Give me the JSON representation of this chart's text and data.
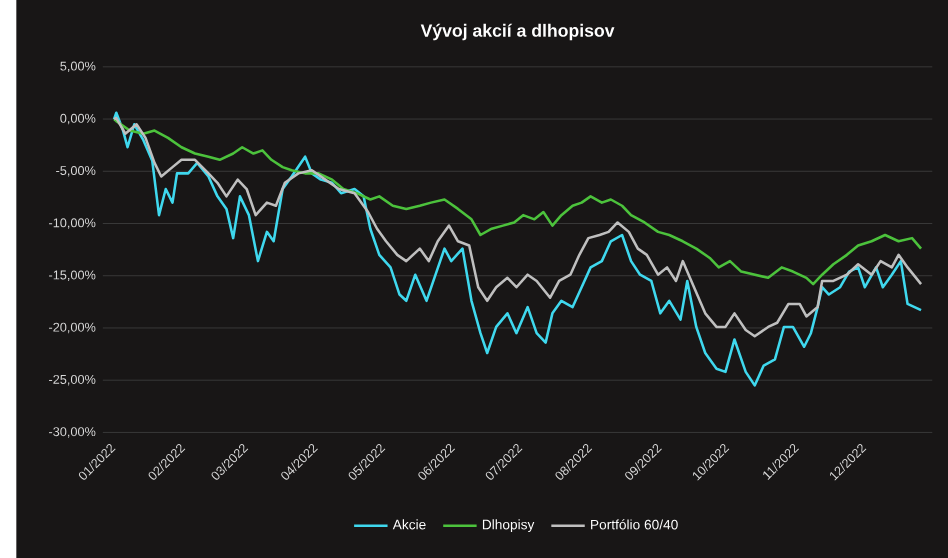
{
  "chart_data": {
    "type": "line",
    "title": "Vývoj akcií a dlhopisov",
    "xlim": [
      "2021-12-29",
      "2023-01-02"
    ],
    "xticks": [
      {
        "value": "2022-01-01",
        "label": "01/2022"
      },
      {
        "value": "2022-02-01",
        "label": "02/2022"
      },
      {
        "value": "2022-03-01",
        "label": "03/2022"
      },
      {
        "value": "2022-04-01",
        "label": "04/2022"
      },
      {
        "value": "2022-05-01",
        "label": "05/2022"
      },
      {
        "value": "2022-06-01",
        "label": "06/2022"
      },
      {
        "value": "2022-07-01",
        "label": "07/2022"
      },
      {
        "value": "2022-08-01",
        "label": "08/2022"
      },
      {
        "value": "2022-09-01",
        "label": "09/2022"
      },
      {
        "value": "2022-10-01",
        "label": "10/2022"
      },
      {
        "value": "2022-11-01",
        "label": "11/2022"
      },
      {
        "value": "2022-12-01",
        "label": "12/2022"
      }
    ],
    "ylim": [
      -30,
      5
    ],
    "yticks": [
      {
        "value": 5,
        "label": "5,00%"
      },
      {
        "value": 0,
        "label": "0,00%"
      },
      {
        "value": -5,
        "label": "-5,00%"
      },
      {
        "value": -10,
        "label": "-10,00%"
      },
      {
        "value": -15,
        "label": "-15,00%"
      },
      {
        "value": -20,
        "label": "-20,00%"
      },
      {
        "value": -25,
        "label": "-25,00%"
      },
      {
        "value": -30,
        "label": "-30,00%"
      }
    ],
    "grid": "y",
    "legend": "bottom",
    "series": [
      {
        "name": "Akcie",
        "color": "#3fd8ee",
        "x": [
          "2022-01-03",
          "2022-01-04",
          "2022-01-07",
          "2022-01-09",
          "2022-01-12",
          "2022-01-16",
          "2022-01-20",
          "2022-01-23",
          "2022-01-26",
          "2022-01-29",
          "2022-01-31",
          "2022-02-05",
          "2022-02-09",
          "2022-02-14",
          "2022-02-18",
          "2022-02-22",
          "2022-02-25",
          "2022-02-28",
          "2022-03-04",
          "2022-03-08",
          "2022-03-12",
          "2022-03-15",
          "2022-03-19",
          "2022-03-23",
          "2022-03-29",
          "2022-04-01",
          "2022-04-05",
          "2022-04-10",
          "2022-04-14",
          "2022-04-20",
          "2022-04-24",
          "2022-04-27",
          "2022-05-01",
          "2022-05-06",
          "2022-05-10",
          "2022-05-13",
          "2022-05-17",
          "2022-05-22",
          "2022-05-26",
          "2022-05-30",
          "2022-06-02",
          "2022-06-07",
          "2022-06-11",
          "2022-06-15",
          "2022-06-18",
          "2022-06-22",
          "2022-06-27",
          "2022-07-01",
          "2022-07-06",
          "2022-07-10",
          "2022-07-14",
          "2022-07-17",
          "2022-07-21",
          "2022-07-26",
          "2022-07-30",
          "2022-08-03",
          "2022-08-08",
          "2022-08-12",
          "2022-08-17",
          "2022-08-21",
          "2022-08-25",
          "2022-08-30",
          "2022-09-03",
          "2022-09-07",
          "2022-09-12",
          "2022-09-15",
          "2022-09-19",
          "2022-09-23",
          "2022-09-28",
          "2022-10-02",
          "2022-10-06",
          "2022-10-11",
          "2022-10-15",
          "2022-10-19",
          "2022-10-24",
          "2022-10-28",
          "2022-11-01",
          "2022-11-06",
          "2022-11-09",
          "2022-11-12",
          "2022-11-14",
          "2022-11-17",
          "2022-11-22",
          "2022-11-26",
          "2022-11-30",
          "2022-12-03",
          "2022-12-08",
          "2022-12-11",
          "2022-12-15",
          "2022-12-19",
          "2022-12-22",
          "2022-12-28"
        ],
        "values": [
          0,
          0.6,
          -1.1,
          -2.7,
          -0.5,
          -2,
          -4,
          -9.2,
          -6.7,
          -8,
          -5.2,
          -5.2,
          -4.2,
          -5.5,
          -7.4,
          -8.6,
          -11.4,
          -7.4,
          -9.2,
          -13.6,
          -10.8,
          -11.7,
          -6.7,
          -5.5,
          -3.6,
          -5.2,
          -5.8,
          -6.1,
          -7.1,
          -6.7,
          -7.4,
          -10.5,
          -13,
          -14.2,
          -16.8,
          -17.4,
          -14.9,
          -17.4,
          -14.9,
          -12.4,
          -13.6,
          -12.4,
          -17.4,
          -20.5,
          -22.4,
          -19.9,
          -18.6,
          -20.5,
          -18,
          -20.5,
          -21.4,
          -18.6,
          -17.4,
          -18,
          -16.1,
          -14.2,
          -13.6,
          -11.7,
          -11.1,
          -13.6,
          -14.9,
          -15.5,
          -18.6,
          -17.4,
          -19.2,
          -15.5,
          -19.9,
          -22.4,
          -23.9,
          -24.2,
          -21.1,
          -24.2,
          -25.5,
          -23.6,
          -23,
          -19.9,
          -19.9,
          -21.8,
          -20.5,
          -18,
          -16.1,
          -16.8,
          -16.1,
          -14.6,
          -14.2,
          -16.1,
          -14.2,
          -16.1,
          -14.9,
          -13.6,
          -17.7,
          -18.3
        ]
      },
      {
        "name": "Dlhopisy",
        "color": "#4cc23c",
        "x": [
          "2022-01-03",
          "2022-01-04",
          "2022-01-10",
          "2022-01-16",
          "2022-01-21",
          "2022-01-27",
          "2022-02-02",
          "2022-02-08",
          "2022-02-14",
          "2022-02-19",
          "2022-02-25",
          "2022-03-01",
          "2022-03-06",
          "2022-03-10",
          "2022-03-14",
          "2022-03-19",
          "2022-03-23",
          "2022-03-29",
          "2022-04-04",
          "2022-04-10",
          "2022-04-15",
          "2022-04-21",
          "2022-04-27",
          "2022-05-01",
          "2022-05-07",
          "2022-05-13",
          "2022-05-19",
          "2022-05-24",
          "2022-05-30",
          "2022-06-05",
          "2022-06-11",
          "2022-06-15",
          "2022-06-20",
          "2022-06-25",
          "2022-06-30",
          "2022-07-04",
          "2022-07-09",
          "2022-07-13",
          "2022-07-17",
          "2022-07-21",
          "2022-07-26",
          "2022-07-30",
          "2022-08-03",
          "2022-08-08",
          "2022-08-12",
          "2022-08-17",
          "2022-08-21",
          "2022-08-27",
          "2022-09-02",
          "2022-09-07",
          "2022-09-13",
          "2022-09-19",
          "2022-09-25",
          "2022-09-29",
          "2022-10-04",
          "2022-10-09",
          "2022-10-15",
          "2022-10-21",
          "2022-10-27",
          "2022-11-01",
          "2022-11-07",
          "2022-11-10",
          "2022-11-14",
          "2022-11-19",
          "2022-11-25",
          "2022-11-30",
          "2022-12-06",
          "2022-12-12",
          "2022-12-18",
          "2022-12-24",
          "2022-12-28"
        ],
        "values": [
          0,
          -0.2,
          -1.1,
          -1.4,
          -1.1,
          -1.8,
          -2.7,
          -3.3,
          -3.6,
          -3.9,
          -3.3,
          -2.7,
          -3.3,
          -3,
          -3.9,
          -4.6,
          -4.9,
          -5.2,
          -5.2,
          -5.8,
          -6.7,
          -7.1,
          -7.7,
          -7.4,
          -8.3,
          -8.6,
          -8.3,
          -8,
          -7.7,
          -8.6,
          -9.6,
          -11.1,
          -10.5,
          -10.2,
          -9.9,
          -9.2,
          -9.6,
          -8.9,
          -10.2,
          -9.2,
          -8.3,
          -8,
          -7.4,
          -8,
          -7.7,
          -8.3,
          -9.2,
          -9.9,
          -10.8,
          -11.1,
          -11.7,
          -12.4,
          -13.3,
          -14.2,
          -13.6,
          -14.6,
          -14.9,
          -15.2,
          -14.2,
          -14.6,
          -15.2,
          -15.8,
          -14.9,
          -13.9,
          -13,
          -12.1,
          -11.7,
          -11.1,
          -11.7,
          -11.4,
          -12.4
        ]
      },
      {
        "name": "Portfólio 60/40",
        "color": "#bfbfbf",
        "x": [
          "2022-01-03",
          "2022-01-04",
          "2022-01-08",
          "2022-01-13",
          "2022-01-17",
          "2022-01-21",
          "2022-01-24",
          "2022-01-29",
          "2022-02-02",
          "2022-02-08",
          "2022-02-14",
          "2022-02-18",
          "2022-02-22",
          "2022-02-27",
          "2022-03-03",
          "2022-03-07",
          "2022-03-12",
          "2022-03-16",
          "2022-03-20",
          "2022-03-26",
          "2022-04-01",
          "2022-04-07",
          "2022-04-13",
          "2022-04-20",
          "2022-04-26",
          "2022-04-30",
          "2022-05-04",
          "2022-05-09",
          "2022-05-13",
          "2022-05-19",
          "2022-05-23",
          "2022-05-27",
          "2022-06-01",
          "2022-06-05",
          "2022-06-10",
          "2022-06-14",
          "2022-06-18",
          "2022-06-22",
          "2022-06-27",
          "2022-07-01",
          "2022-07-06",
          "2022-07-10",
          "2022-07-16",
          "2022-07-20",
          "2022-07-25",
          "2022-07-29",
          "2022-08-02",
          "2022-08-07",
          "2022-08-11",
          "2022-08-15",
          "2022-08-20",
          "2022-08-24",
          "2022-08-28",
          "2022-09-02",
          "2022-09-06",
          "2022-09-10",
          "2022-09-13",
          "2022-09-18",
          "2022-09-23",
          "2022-09-28",
          "2022-10-02",
          "2022-10-06",
          "2022-10-11",
          "2022-10-15",
          "2022-10-21",
          "2022-10-25",
          "2022-10-30",
          "2022-11-04",
          "2022-11-07",
          "2022-11-12",
          "2022-11-14",
          "2022-11-19",
          "2022-11-25",
          "2022-11-30",
          "2022-12-06",
          "2022-12-10",
          "2022-12-15",
          "2022-12-18",
          "2022-12-22",
          "2022-12-28"
        ],
        "values": [
          0,
          0.1,
          -1.4,
          -0.5,
          -1.8,
          -4.2,
          -5.5,
          -4.6,
          -3.9,
          -3.9,
          -5.2,
          -6.1,
          -7.4,
          -5.8,
          -6.7,
          -9.2,
          -8,
          -8.3,
          -6.1,
          -5.2,
          -4.9,
          -5.8,
          -6.7,
          -7.1,
          -8.9,
          -10.5,
          -11.7,
          -13,
          -13.6,
          -12.4,
          -13.6,
          -11.7,
          -10.2,
          -11.7,
          -12.1,
          -16.1,
          -17.4,
          -16.1,
          -15.2,
          -16.1,
          -14.9,
          -15.5,
          -17.1,
          -15.5,
          -14.9,
          -13,
          -11.4,
          -11.1,
          -10.8,
          -9.9,
          -10.8,
          -12.4,
          -13,
          -14.9,
          -14.2,
          -15.5,
          -13.6,
          -16.1,
          -18.6,
          -19.9,
          -19.9,
          -18.6,
          -20.2,
          -20.8,
          -19.9,
          -19.5,
          -17.7,
          -17.7,
          -18.9,
          -18,
          -15.5,
          -15.5,
          -14.9,
          -13.9,
          -14.9,
          -13.6,
          -14.2,
          -13,
          -14.2,
          -15.8
        ]
      }
    ]
  }
}
